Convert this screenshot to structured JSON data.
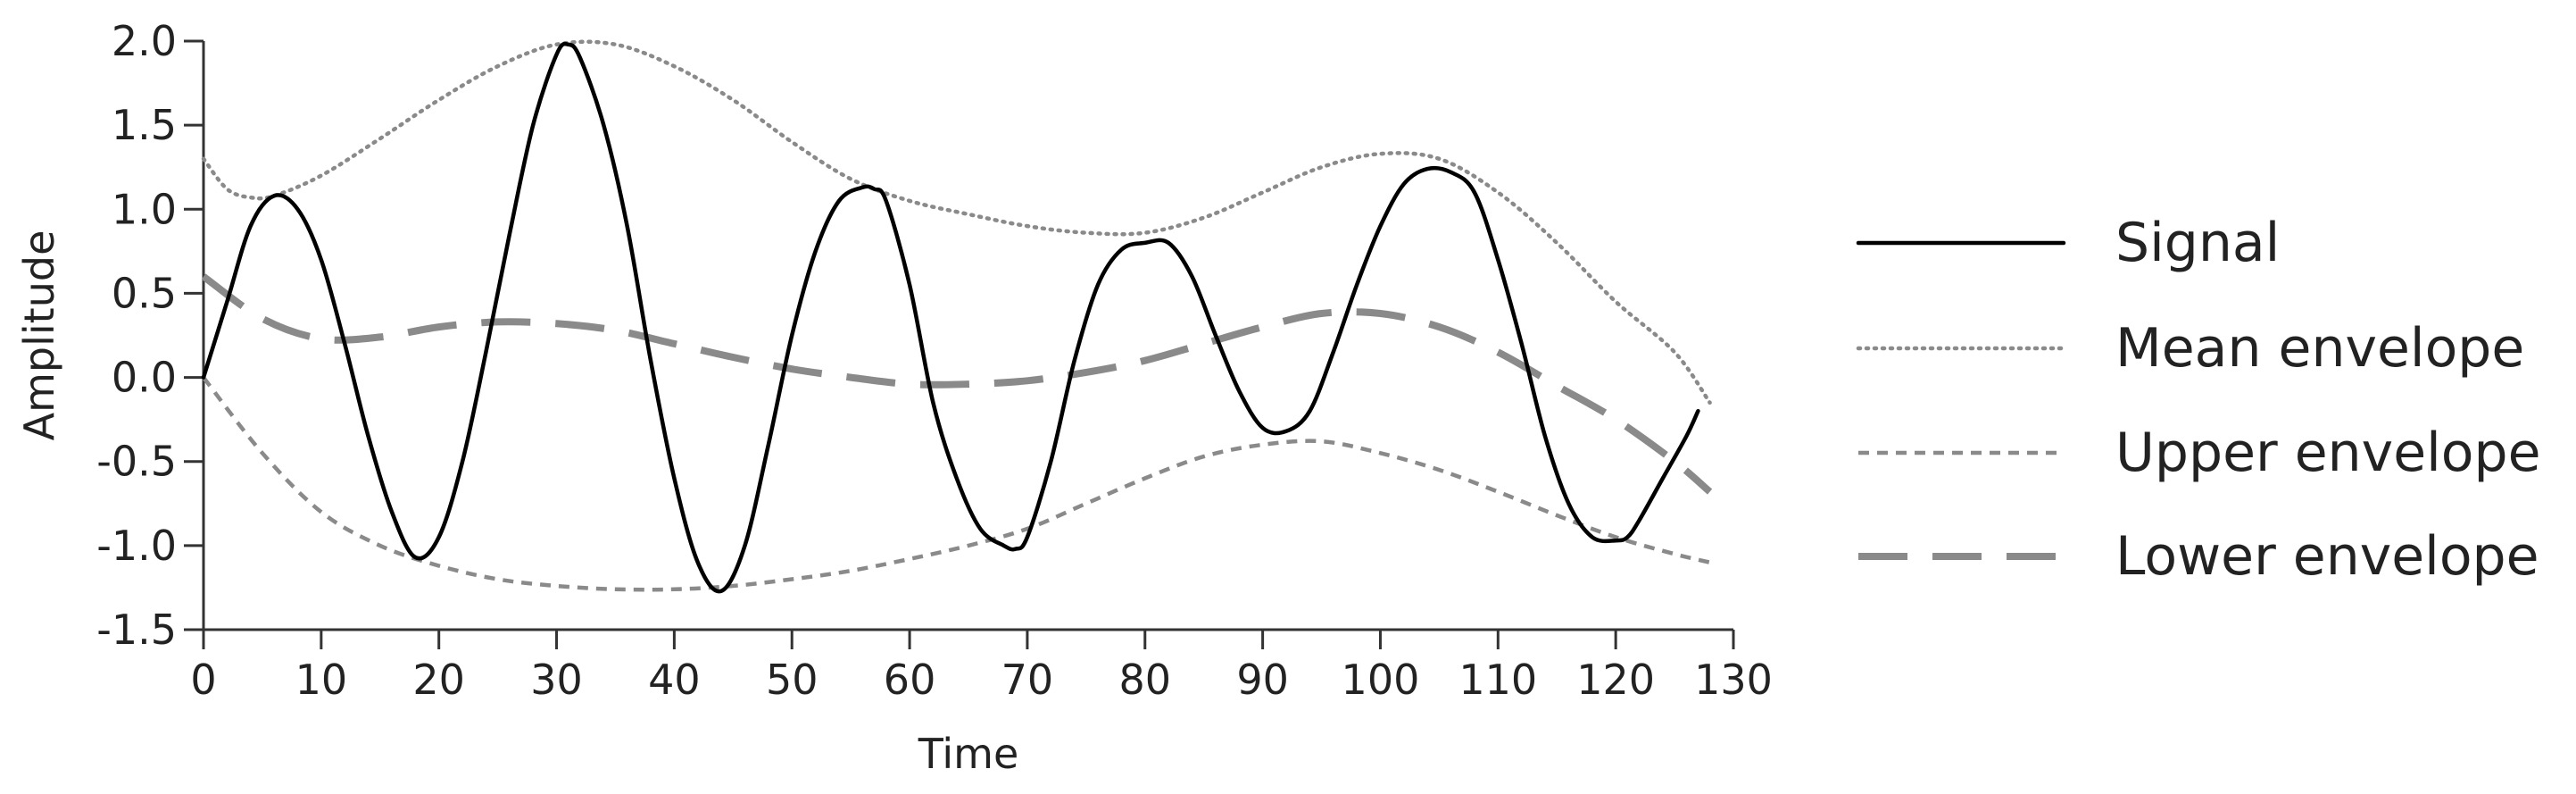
{
  "chart_data": {
    "type": "line",
    "title": "",
    "xlabel": "Time",
    "ylabel": "Amplitude",
    "xlim": [
      0,
      130
    ],
    "ylim": [
      -1.5,
      2.0
    ],
    "x_ticks": [
      0,
      10,
      20,
      30,
      40,
      50,
      60,
      70,
      80,
      90,
      100,
      110,
      120,
      130
    ],
    "y_ticks": [
      -1.5,
      -1.0,
      -0.5,
      0.0,
      0.5,
      1.0,
      1.5,
      2.0
    ],
    "x_tick_labels": [
      "0",
      "10",
      "20",
      "30",
      "40",
      "50",
      "60",
      "70",
      "80",
      "90",
      "100",
      "110",
      "120",
      "130"
    ],
    "y_tick_labels": [
      "-1.5",
      "-1.0",
      "-0.5",
      "0.0",
      "0.5",
      "1.0",
      "1.5",
      "2.0"
    ],
    "grid": false,
    "legend_position": "right",
    "series": [
      {
        "name": "Signal",
        "color": "#000000",
        "style": "solid",
        "x": [
          0,
          2,
          4,
          6,
          8,
          10,
          12,
          14,
          16,
          18,
          20,
          22,
          24,
          26,
          28,
          30,
          31,
          32,
          34,
          36,
          38,
          40,
          42,
          44,
          46,
          48,
          50,
          52,
          54,
          56,
          57,
          58,
          60,
          62,
          64,
          66,
          68,
          69,
          70,
          72,
          74,
          76,
          78,
          80,
          82,
          84,
          86,
          88,
          90,
          92,
          94,
          96,
          98,
          100,
          102,
          104,
          106,
          108,
          110,
          112,
          114,
          116,
          118,
          120,
          121,
          122,
          124,
          126,
          127
        ],
        "y": [
          0.0,
          0.45,
          0.9,
          1.08,
          1.0,
          0.7,
          0.2,
          -0.35,
          -0.8,
          -1.07,
          -0.95,
          -0.5,
          0.15,
          0.85,
          1.5,
          1.92,
          1.98,
          1.9,
          1.5,
          0.9,
          0.1,
          -0.6,
          -1.1,
          -1.27,
          -1.0,
          -0.4,
          0.25,
          0.75,
          1.05,
          1.13,
          1.12,
          1.05,
          0.55,
          -0.15,
          -0.6,
          -0.9,
          -1.0,
          -1.02,
          -0.95,
          -0.5,
          0.1,
          0.55,
          0.76,
          0.8,
          0.8,
          0.6,
          0.25,
          -0.08,
          -0.3,
          -0.32,
          -0.2,
          0.15,
          0.55,
          0.9,
          1.15,
          1.24,
          1.22,
          1.1,
          0.7,
          0.2,
          -0.35,
          -0.75,
          -0.95,
          -0.97,
          -0.95,
          -0.85,
          -0.6,
          -0.35,
          -0.2
        ]
      },
      {
        "name": "Mean envelope",
        "color": "#8a8a8a",
        "style": "dotted",
        "x": [
          0,
          2,
          4,
          6,
          10,
          15,
          20,
          25,
          30,
          35,
          40,
          45,
          50,
          55,
          60,
          65,
          70,
          75,
          80,
          85,
          90,
          95,
          100,
          105,
          110,
          115,
          120,
          125,
          128
        ],
        "y": [
          1.3,
          1.12,
          1.07,
          1.08,
          1.2,
          1.42,
          1.65,
          1.85,
          1.98,
          1.98,
          1.85,
          1.65,
          1.4,
          1.18,
          1.05,
          0.97,
          0.9,
          0.86,
          0.86,
          0.95,
          1.1,
          1.25,
          1.33,
          1.3,
          1.1,
          0.8,
          0.45,
          0.15,
          -0.15
        ]
      },
      {
        "name": "Upper envelope",
        "color": "#8a8a8a",
        "style": "short-dash",
        "x": [
          0,
          5,
          10,
          15,
          20,
          25,
          30,
          35,
          40,
          45,
          50,
          55,
          60,
          65,
          70,
          75,
          80,
          85,
          90,
          95,
          100,
          105,
          110,
          115,
          120,
          125,
          128
        ],
        "y": [
          0.0,
          -0.45,
          -0.8,
          -1.0,
          -1.12,
          -1.2,
          -1.24,
          -1.26,
          -1.26,
          -1.24,
          -1.2,
          -1.15,
          -1.08,
          -1.0,
          -0.9,
          -0.75,
          -0.6,
          -0.47,
          -0.4,
          -0.38,
          -0.45,
          -0.55,
          -0.68,
          -0.82,
          -0.95,
          -1.05,
          -1.1
        ]
      },
      {
        "name": "Lower envelope",
        "color": "#8a8a8a",
        "style": "long-dash",
        "x": [
          0,
          5,
          10,
          15,
          20,
          25,
          30,
          35,
          40,
          45,
          50,
          55,
          60,
          65,
          70,
          75,
          80,
          85,
          90,
          95,
          100,
          105,
          110,
          115,
          120,
          125,
          128
        ],
        "y": [
          0.6,
          0.35,
          0.23,
          0.24,
          0.3,
          0.33,
          0.32,
          0.28,
          0.2,
          0.12,
          0.05,
          0.0,
          -0.04,
          -0.04,
          -0.02,
          0.03,
          0.1,
          0.2,
          0.3,
          0.38,
          0.38,
          0.3,
          0.15,
          -0.05,
          -0.25,
          -0.5,
          -0.68
        ]
      }
    ]
  }
}
